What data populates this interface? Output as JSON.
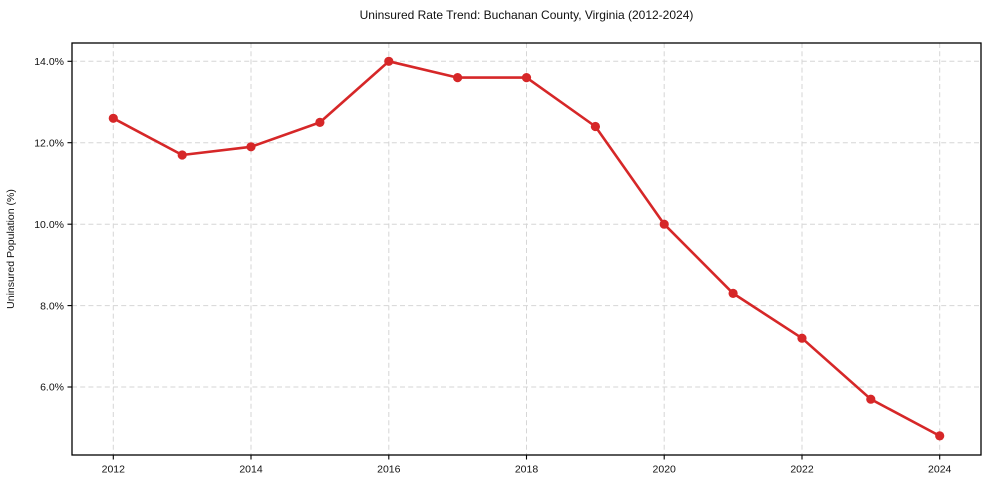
{
  "title": "Uninsured Rate Trend: Buchanan County, Virginia (2012-2024)",
  "chart_data": {
    "type": "line",
    "title": "Uninsured Rate Trend: Buchanan County, Virginia (2012-2024)",
    "xlabel": "",
    "ylabel": "Uninsured Population (%)",
    "x": [
      2012,
      2013,
      2014,
      2015,
      2016,
      2017,
      2018,
      2019,
      2020,
      2021,
      2022,
      2023,
      2024
    ],
    "series": [
      {
        "name": "Uninsured Population (%)",
        "values": [
          12.6,
          11.7,
          11.9,
          12.5,
          14.0,
          13.6,
          13.6,
          12.4,
          10.0,
          8.3,
          7.2,
          5.7,
          4.8
        ]
      }
    ],
    "xticks": [
      2012,
      2014,
      2016,
      2018,
      2020,
      2022,
      2024
    ],
    "xtick_labels": [
      "2012",
      "2014",
      "2016",
      "2018",
      "2020",
      "2022",
      "2024"
    ],
    "yticks": [
      6,
      8,
      10,
      12,
      14
    ],
    "ytick_labels": [
      "6.0%",
      "8.0%",
      "10.0%",
      "12.0%",
      "14.0%"
    ],
    "xlim": [
      2011.4,
      2024.6
    ],
    "ylim": [
      4.33,
      14.45
    ],
    "grid": true,
    "grid_style": "dashed",
    "legend": "none",
    "marker": "circle",
    "colors": {
      "line": "#d62728",
      "marker": "#d62728",
      "grid": "#d6d6d6",
      "axis": "#000000",
      "background": "#ffffff"
    }
  }
}
